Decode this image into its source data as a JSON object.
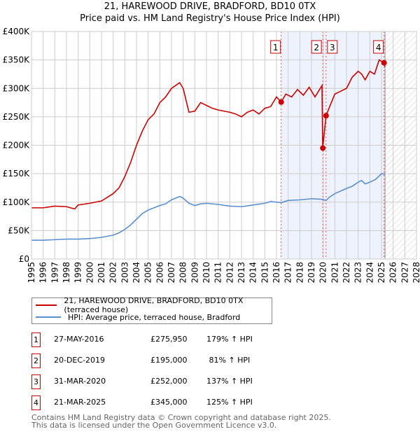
{
  "title": "21, HAREWOOD DRIVE, BRADFORD, BD10 0TX",
  "subtitle": "Price paid vs. HM Land Registry's House Price Index (HPI)",
  "chart_data": {
    "type": "line",
    "ylim": [
      0,
      400000
    ],
    "xlim": [
      1995,
      2028
    ],
    "yticks": [
      {
        "v": 0,
        "l": "£0"
      },
      {
        "v": 50000,
        "l": "£50K"
      },
      {
        "v": 100000,
        "l": "£100K"
      },
      {
        "v": 150000,
        "l": "£150K"
      },
      {
        "v": 200000,
        "l": "£200K"
      },
      {
        "v": 250000,
        "l": "£250K"
      },
      {
        "v": 300000,
        "l": "£300K"
      },
      {
        "v": 350000,
        "l": "£350K"
      },
      {
        "v": 400000,
        "l": "£400K"
      }
    ],
    "xticks": [
      "1995",
      "1996",
      "1997",
      "1998",
      "1999",
      "2000",
      "2001",
      "2002",
      "2003",
      "2004",
      "2005",
      "2006",
      "2007",
      "2008",
      "2009",
      "2010",
      "2011",
      "2012",
      "2013",
      "2014",
      "2015",
      "2016",
      "2017",
      "2018",
      "2019",
      "2020",
      "2021",
      "2022",
      "2023",
      "2024",
      "2025",
      "2026",
      "2027",
      "2028"
    ],
    "data_end": 2025.3,
    "series": [
      {
        "name": "21, HAREWOOD DRIVE, BRADFORD, BD10 0TX (terraced house)",
        "color": "#cc0000",
        "x": [
          1995,
          1996,
          1997,
          1998,
          1998.7,
          1999,
          2000,
          2001,
          2002,
          2002.5,
          2003,
          2003.5,
          2004,
          2004.5,
          2005,
          2005.5,
          2006,
          2006.5,
          2007,
          2007.7,
          2008,
          2008.5,
          2009,
          2009.5,
          2010,
          2010.5,
          2011,
          2011.5,
          2012,
          2012.5,
          2013,
          2013.5,
          2014,
          2014.5,
          2015,
          2015.5,
          2016,
          2016.4,
          2016.8,
          2017.3,
          2017.8,
          2018.3,
          2018.8,
          2019.3,
          2019.9,
          2019.96,
          2020.25,
          2020.5,
          2021,
          2021.5,
          2022,
          2022.5,
          2023,
          2023.3,
          2023.6,
          2024,
          2024.4,
          2024.8,
          2025.2,
          2025.3
        ],
        "y": [
          90000,
          90000,
          93000,
          92000,
          88000,
          95000,
          98000,
          102000,
          115000,
          125000,
          145000,
          170000,
          200000,
          225000,
          245000,
          255000,
          275000,
          285000,
          300000,
          310000,
          300000,
          258000,
          260000,
          275000,
          270000,
          265000,
          262000,
          260000,
          258000,
          255000,
          250000,
          258000,
          262000,
          255000,
          265000,
          268000,
          285000,
          276000,
          290000,
          285000,
          298000,
          288000,
          302000,
          285000,
          305000,
          195000,
          252000,
          265000,
          290000,
          295000,
          300000,
          320000,
          330000,
          325000,
          315000,
          330000,
          325000,
          350000,
          345000,
          338000
        ]
      },
      {
        "name": "HPI: Average price, terraced house, Bradford",
        "color": "#5b8fd0",
        "x": [
          1995,
          1996,
          1997,
          1998,
          1999,
          2000,
          2001,
          2002,
          2002.5,
          2003,
          2003.5,
          2004,
          2004.5,
          2005,
          2005.5,
          2006,
          2006.5,
          2007,
          2007.7,
          2008,
          2008.5,
          2009,
          2009.5,
          2010,
          2011,
          2012,
          2013,
          2014,
          2015,
          2015.5,
          2016,
          2016.4,
          2017,
          2018,
          2019,
          2019.9,
          2020.25,
          2020.5,
          2021,
          2022,
          2022.5,
          2023,
          2023.3,
          2023.6,
          2024,
          2024.5,
          2025,
          2025.3
        ],
        "y": [
          33000,
          33000,
          34000,
          35000,
          35000,
          36000,
          38000,
          42000,
          46000,
          52000,
          60000,
          70000,
          80000,
          86000,
          90000,
          94000,
          97000,
          104000,
          110000,
          107000,
          98000,
          94000,
          97000,
          98000,
          96000,
          93000,
          92000,
          95000,
          98000,
          101000,
          100000,
          99000,
          103000,
          104000,
          106000,
          105000,
          103000,
          108000,
          115000,
          124000,
          128000,
          135000,
          138000,
          132000,
          135000,
          140000,
          150000,
          149000
        ]
      }
    ],
    "sales": [
      {
        "n": "1",
        "x": 2016.4,
        "y": 275950
      },
      {
        "n": "2",
        "x": 2019.97,
        "y": 195000
      },
      {
        "n": "3",
        "x": 2020.25,
        "y": 252000
      },
      {
        "n": "4",
        "x": 2025.22,
        "y": 345000
      }
    ]
  },
  "legend": [
    "21, HAREWOOD DRIVE, BRADFORD, BD10 0TX (terraced house)",
    "HPI: Average price, terraced house, Bradford"
  ],
  "table": [
    {
      "n": "1",
      "date": "27-MAY-2016",
      "price": "£275,950",
      "hpi": "179% ↑ HPI"
    },
    {
      "n": "2",
      "date": "20-DEC-2019",
      "price": "£195,000",
      "hpi": " 81% ↑ HPI"
    },
    {
      "n": "3",
      "date": "31-MAR-2020",
      "price": "£252,000",
      "hpi": "137% ↑ HPI"
    },
    {
      "n": "4",
      "date": "21-MAR-2025",
      "price": "£345,000",
      "hpi": "125% ↑ HPI"
    }
  ],
  "footer1": "Contains HM Land Registry data © Crown copyright and database right 2025.",
  "footer2": "This data is licensed under the Open Government Licence v3.0."
}
